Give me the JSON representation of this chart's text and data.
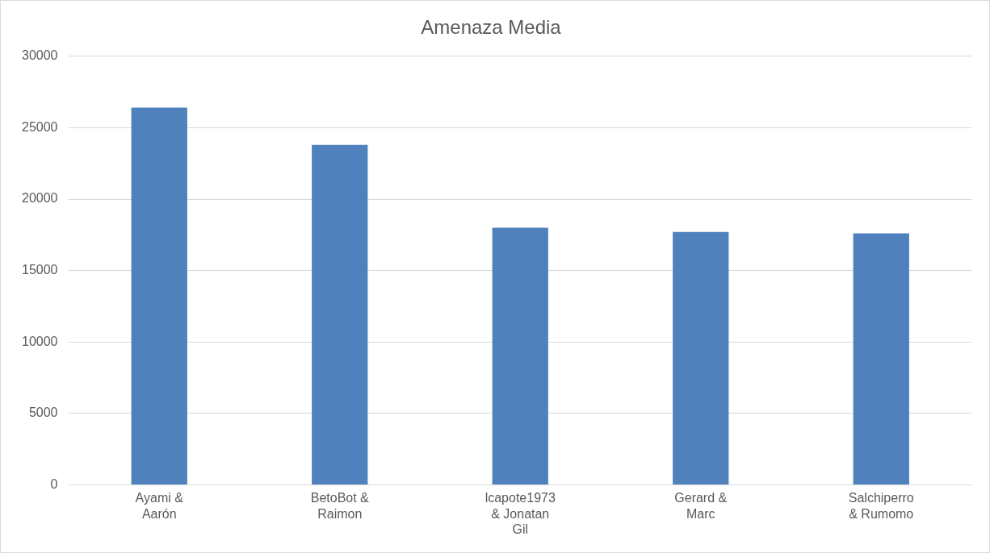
{
  "chart_data": {
    "type": "bar",
    "title": "Amenaza Media",
    "categories": [
      "Ayami & Aarón",
      "BetoBot & Raimon",
      "lcapote1973 & Jonatan Gil",
      "Gerard & Marc",
      "Salchiperro & Rumomo"
    ],
    "values": [
      26400,
      23800,
      18000,
      17700,
      17600
    ],
    "color": "#4f81bd",
    "ylim": [
      0,
      30000
    ],
    "yticks": [
      0,
      5000,
      10000,
      15000,
      20000,
      25000,
      30000
    ],
    "grid": "y",
    "legend": false
  }
}
